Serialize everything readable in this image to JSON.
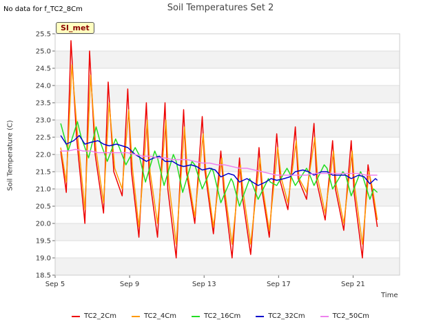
{
  "header": {
    "nodata": "No data for f_TC2_8Cm",
    "title": "Soil Temperatures Set 2",
    "badge": "SI_met"
  },
  "chart_data": {
    "type": "line",
    "title": "Soil Temperatures Set 2",
    "xlabel": "Time",
    "ylabel": "Soil Temperature (C)",
    "ylim": [
      18.5,
      25.5
    ],
    "yticks": [
      18.5,
      19.0,
      19.5,
      20.0,
      20.5,
      21.0,
      21.5,
      22.0,
      22.5,
      23.0,
      23.5,
      24.0,
      24.5,
      25.0,
      25.5
    ],
    "ytick_labels": [
      "18.5",
      "19.0",
      "19.5",
      "20.0",
      "20.5",
      "21.0",
      "21.5",
      "22.0",
      "22.5",
      "23.0",
      "23.5",
      "24.0",
      "24.5",
      "25.0",
      "25.5"
    ],
    "xlim": [
      5,
      23.5
    ],
    "xticks": [
      5,
      9,
      13,
      17,
      21
    ],
    "xtick_labels": [
      "Sep 5",
      "Sep 9",
      "Sep 13",
      "Sep 17",
      "Sep 21"
    ],
    "grid": true,
    "legend_position": "bottom",
    "series": [
      {
        "name": "TC2_2Cm",
        "color": "#ee0000",
        "x": [
          5.3,
          5.6,
          5.85,
          6.15,
          6.6,
          6.85,
          7.15,
          7.6,
          7.85,
          8.15,
          8.6,
          8.9,
          9.1,
          9.5,
          9.9,
          10.05,
          10.5,
          10.9,
          11.05,
          11.5,
          11.9,
          12.05,
          12.5,
          12.9,
          13.05,
          13.5,
          13.9,
          14.05,
          14.5,
          14.9,
          15.05,
          15.5,
          15.95,
          16.1,
          16.5,
          16.9,
          17.1,
          17.5,
          17.9,
          18.05,
          18.5,
          18.9,
          19.05,
          19.5,
          19.9,
          20.05,
          20.5,
          20.9,
          21.05,
          21.5,
          21.8,
          22.0,
          22.3
        ],
        "y": [
          22.1,
          20.9,
          25.3,
          22.5,
          20.0,
          25.0,
          22.0,
          20.3,
          24.1,
          21.5,
          20.8,
          23.9,
          21.5,
          19.6,
          23.5,
          21.4,
          19.6,
          23.5,
          21.0,
          19.0,
          23.3,
          21.5,
          20.0,
          23.1,
          21.5,
          19.7,
          22.1,
          21.0,
          19.0,
          21.9,
          20.8,
          19.1,
          22.2,
          21.0,
          19.6,
          22.6,
          21.2,
          20.4,
          22.8,
          21.3,
          20.7,
          22.9,
          21.2,
          20.1,
          22.4,
          21.0,
          19.8,
          22.4,
          20.9,
          19.0,
          21.7,
          21.0,
          19.9
        ]
      },
      {
        "name": "TC2_4Cm",
        "color": "#ff9900",
        "x": [
          5.3,
          5.6,
          5.9,
          6.2,
          6.6,
          6.9,
          7.2,
          7.6,
          7.9,
          8.2,
          8.6,
          8.95,
          9.15,
          9.5,
          9.95,
          10.1,
          10.5,
          10.95,
          11.1,
          11.5,
          11.95,
          12.1,
          12.5,
          12.95,
          13.1,
          13.5,
          13.95,
          14.1,
          14.5,
          14.95,
          15.1,
          15.5,
          16.0,
          16.15,
          16.5,
          16.95,
          17.15,
          17.5,
          17.95,
          18.1,
          18.5,
          18.95,
          19.1,
          19.5,
          19.95,
          20.1,
          20.5,
          20.95,
          21.1,
          21.5,
          21.85,
          22.05,
          22.3
        ],
        "y": [
          22.2,
          21.2,
          24.6,
          22.6,
          20.4,
          24.3,
          22.1,
          20.6,
          23.5,
          21.6,
          21.0,
          23.3,
          21.6,
          19.9,
          23.0,
          21.5,
          20.0,
          23.0,
          21.2,
          19.4,
          22.8,
          21.5,
          20.2,
          22.6,
          21.5,
          19.9,
          21.9,
          21.0,
          19.4,
          21.7,
          20.9,
          19.4,
          21.9,
          21.0,
          19.8,
          22.2,
          21.3,
          20.6,
          22.4,
          21.3,
          20.9,
          22.5,
          21.3,
          20.3,
          22.1,
          21.1,
          20.0,
          22.1,
          21.0,
          19.4,
          21.5,
          21.0,
          20.1
        ]
      },
      {
        "name": "TC2_16Cm",
        "color": "#22dd22",
        "x": [
          5.3,
          5.7,
          6.2,
          6.4,
          6.8,
          7.2,
          7.4,
          7.8,
          8.25,
          8.45,
          8.8,
          9.3,
          9.5,
          9.85,
          10.35,
          10.5,
          10.85,
          11.35,
          11.5,
          11.85,
          12.35,
          12.5,
          12.9,
          13.4,
          13.5,
          13.9,
          14.45,
          14.55,
          14.9,
          15.45,
          15.55,
          15.9,
          16.45,
          16.55,
          16.9,
          17.45,
          17.55,
          17.9,
          18.5,
          18.6,
          18.9,
          19.45,
          19.6,
          19.9,
          20.45,
          20.6,
          20.9,
          21.4,
          21.5,
          21.9,
          22.1,
          22.3
        ],
        "y": [
          22.9,
          22.1,
          22.95,
          22.5,
          21.9,
          22.8,
          22.4,
          21.8,
          22.45,
          22.2,
          21.7,
          22.2,
          22.0,
          21.2,
          22.1,
          21.9,
          21.1,
          22.0,
          21.8,
          20.9,
          21.8,
          21.7,
          21.0,
          21.6,
          21.5,
          20.6,
          21.3,
          21.2,
          20.5,
          21.3,
          21.2,
          20.7,
          21.3,
          21.2,
          21.1,
          21.6,
          21.5,
          21.1,
          21.6,
          21.5,
          21.1,
          21.7,
          21.6,
          21.0,
          21.5,
          21.4,
          20.8,
          21.5,
          21.4,
          20.7,
          21.0,
          20.9
        ]
      },
      {
        "name": "TC2_32Cm",
        "color": "#0000cc",
        "x": [
          5.3,
          5.6,
          6.0,
          6.3,
          6.6,
          6.9,
          7.3,
          7.6,
          7.9,
          8.3,
          8.6,
          8.9,
          9.3,
          9.6,
          9.9,
          10.3,
          10.6,
          10.9,
          11.3,
          11.6,
          11.9,
          12.3,
          12.6,
          12.9,
          13.3,
          13.6,
          13.9,
          14.3,
          14.6,
          14.9,
          15.3,
          15.6,
          15.9,
          16.3,
          16.6,
          16.9,
          17.3,
          17.6,
          17.9,
          18.3,
          18.6,
          18.9,
          19.3,
          19.6,
          19.9,
          20.3,
          20.6,
          20.9,
          21.3,
          21.6,
          21.9,
          22.2,
          22.3
        ],
        "y": [
          22.55,
          22.3,
          22.4,
          22.55,
          22.3,
          22.35,
          22.4,
          22.3,
          22.25,
          22.3,
          22.25,
          22.2,
          22.0,
          21.9,
          21.8,
          21.9,
          21.95,
          21.8,
          21.8,
          21.7,
          21.65,
          21.7,
          21.65,
          21.55,
          21.6,
          21.55,
          21.35,
          21.45,
          21.4,
          21.2,
          21.3,
          21.2,
          21.1,
          21.2,
          21.3,
          21.25,
          21.3,
          21.35,
          21.5,
          21.55,
          21.5,
          21.4,
          21.5,
          21.5,
          21.4,
          21.4,
          21.4,
          21.3,
          21.4,
          21.35,
          21.15,
          21.3,
          21.25
        ]
      },
      {
        "name": "TC2_50Cm",
        "color": "#ee82ee",
        "x": [
          5.3,
          5.7,
          6.1,
          6.5,
          6.9,
          7.3,
          7.7,
          8.1,
          8.5,
          8.9,
          9.3,
          9.7,
          10.1,
          10.5,
          10.9,
          11.3,
          11.7,
          12.1,
          12.5,
          12.9,
          13.3,
          13.7,
          14.1,
          14.5,
          14.9,
          15.3,
          15.7,
          16.1,
          16.5,
          16.9,
          17.3,
          17.7,
          18.1,
          18.5,
          18.9,
          19.3,
          19.7,
          20.1,
          20.5,
          20.9,
          21.3,
          21.7,
          22.1,
          22.3
        ],
        "y": [
          22.1,
          22.1,
          22.15,
          22.1,
          22.1,
          22.05,
          22.05,
          22.05,
          22.05,
          22.05,
          22.0,
          21.95,
          21.95,
          21.9,
          21.9,
          21.85,
          21.85,
          21.85,
          21.8,
          21.75,
          21.75,
          21.7,
          21.7,
          21.65,
          21.6,
          21.6,
          21.55,
          21.5,
          21.45,
          21.4,
          21.4,
          21.4,
          21.4,
          21.4,
          21.45,
          21.45,
          21.45,
          21.45,
          21.45,
          21.45,
          21.45,
          21.4,
          21.4,
          21.4
        ]
      }
    ]
  }
}
